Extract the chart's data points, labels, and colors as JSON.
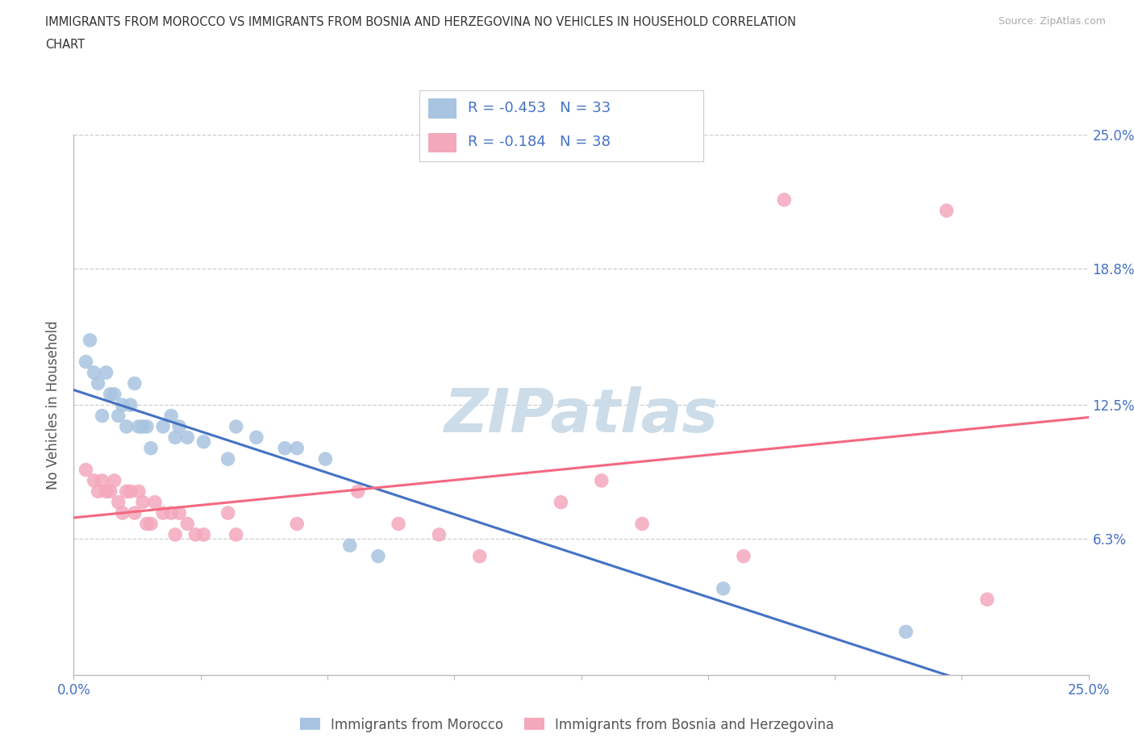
{
  "title_line1": "IMMIGRANTS FROM MOROCCO VS IMMIGRANTS FROM BOSNIA AND HERZEGOVINA NO VEHICLES IN HOUSEHOLD CORRELATION",
  "title_line2": "CHART",
  "source": "Source: ZipAtlas.com",
  "ylabel": "No Vehicles in Household",
  "xlim": [
    0.0,
    0.25
  ],
  "ylim": [
    0.0,
    0.25
  ],
  "xtick_vals": [
    0.0,
    0.03125,
    0.0625,
    0.09375,
    0.125,
    0.15625,
    0.1875,
    0.21875,
    0.25
  ],
  "xtick_show": [
    0.0,
    0.25
  ],
  "xtick_labels_show": [
    "0.0%",
    "25.0%"
  ],
  "ytick_vals": [
    0.0,
    0.063,
    0.125,
    0.188,
    0.25
  ],
  "ytick_labels": [
    "",
    "6.3%",
    "12.5%",
    "18.8%",
    "25.0%"
  ],
  "morocco_R": -0.453,
  "morocco_N": 33,
  "bosnia_R": -0.184,
  "bosnia_N": 38,
  "morocco_color": "#a8c4e0",
  "bosnia_color": "#f4a8bc",
  "morocco_line_color": "#4472c4",
  "bosnia_line_color": "#f46880",
  "text_color": "#4472c4",
  "label_color": "#555555",
  "grid_color": "#cccccc",
  "watermark_color": "#ccdce8",
  "axis_line_color": "#bbbbbb",
  "morocco_x": [
    0.003,
    0.004,
    0.005,
    0.006,
    0.007,
    0.008,
    0.009,
    0.01,
    0.011,
    0.012,
    0.013,
    0.014,
    0.015,
    0.016,
    0.017,
    0.018,
    0.019,
    0.022,
    0.024,
    0.025,
    0.026,
    0.028,
    0.032,
    0.038,
    0.04,
    0.045,
    0.052,
    0.055,
    0.062,
    0.068,
    0.075,
    0.16,
    0.205
  ],
  "morocco_y": [
    0.145,
    0.155,
    0.14,
    0.135,
    0.12,
    0.14,
    0.13,
    0.13,
    0.12,
    0.125,
    0.115,
    0.125,
    0.135,
    0.115,
    0.115,
    0.115,
    0.105,
    0.115,
    0.12,
    0.11,
    0.115,
    0.11,
    0.108,
    0.1,
    0.115,
    0.11,
    0.105,
    0.105,
    0.1,
    0.06,
    0.055,
    0.04,
    0.02
  ],
  "bosnia_x": [
    0.003,
    0.005,
    0.006,
    0.007,
    0.008,
    0.009,
    0.01,
    0.011,
    0.012,
    0.013,
    0.014,
    0.015,
    0.016,
    0.017,
    0.018,
    0.019,
    0.02,
    0.022,
    0.024,
    0.025,
    0.026,
    0.028,
    0.03,
    0.032,
    0.038,
    0.04,
    0.055,
    0.07,
    0.08,
    0.09,
    0.1,
    0.12,
    0.13,
    0.14,
    0.165,
    0.175,
    0.215,
    0.225
  ],
  "bosnia_y": [
    0.095,
    0.09,
    0.085,
    0.09,
    0.085,
    0.085,
    0.09,
    0.08,
    0.075,
    0.085,
    0.085,
    0.075,
    0.085,
    0.08,
    0.07,
    0.07,
    0.08,
    0.075,
    0.075,
    0.065,
    0.075,
    0.07,
    0.065,
    0.065,
    0.075,
    0.065,
    0.07,
    0.085,
    0.07,
    0.065,
    0.055,
    0.08,
    0.09,
    0.07,
    0.055,
    0.22,
    0.215,
    0.035
  ]
}
